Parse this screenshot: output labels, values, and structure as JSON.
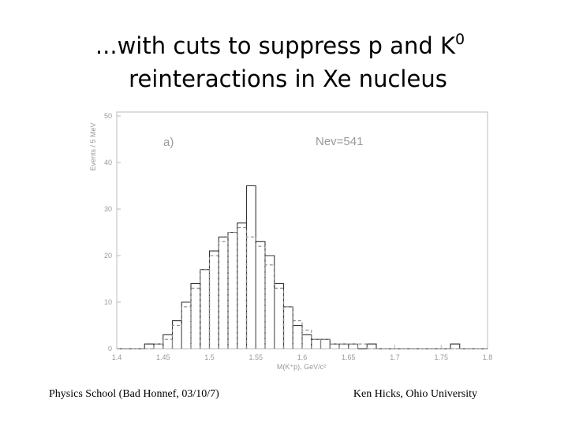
{
  "slide": {
    "title_line1": "...with cuts to suppress p and K",
    "title_sup": "0",
    "title_line2": "reinteractions in Xe nucleus",
    "footer_left": "Physics School (Bad Honnef, 03/10/7)",
    "footer_right": "Ken Hicks, Ohio University"
  },
  "chart_data": {
    "type": "histogram",
    "y_label": "Events / 5 MeV",
    "x_label": "M(K⁺p), GeV/c²",
    "annotations": [
      "a)",
      "Nev=541"
    ],
    "bins": [
      1.4,
      1.41,
      1.42,
      1.43,
      1.44,
      1.45,
      1.46,
      1.47,
      1.48,
      1.49,
      1.5,
      1.51,
      1.52,
      1.53,
      1.54,
      1.55,
      1.56,
      1.57,
      1.58,
      1.59,
      1.6,
      1.61,
      1.62,
      1.63,
      1.64,
      1.65,
      1.66,
      1.67,
      1.68,
      1.69,
      1.7,
      1.71,
      1.72,
      1.73,
      1.74,
      1.75,
      1.76,
      1.77,
      1.78,
      1.79,
      1.8
    ],
    "series": [
      {
        "color": "#333333",
        "values": [
          0,
          0,
          0,
          1,
          1,
          3,
          6,
          10,
          14,
          17,
          21,
          24,
          25,
          27,
          35,
          23,
          20,
          14,
          9,
          5,
          3,
          2,
          2,
          1,
          1,
          1,
          0,
          1,
          0,
          0,
          0,
          0,
          0,
          0,
          0,
          0,
          1,
          0,
          0,
          0
        ]
      },
      {
        "color": "#888888",
        "dash": true,
        "values": [
          0,
          0,
          0,
          0,
          1,
          2,
          5,
          9,
          13,
          17,
          20,
          23,
          25,
          26,
          24,
          22,
          18,
          13,
          9,
          6,
          4,
          2,
          2,
          1,
          1,
          1,
          1,
          0,
          0,
          0,
          0,
          0,
          0,
          0,
          0,
          0,
          0,
          0,
          0,
          0
        ]
      }
    ],
    "xlim": [
      1.4,
      1.8
    ],
    "xticks": [
      1.4,
      1.45,
      1.5,
      1.55,
      1.6,
      1.65,
      1.7,
      1.75,
      1.8
    ],
    "ylim": [
      0,
      50
    ],
    "yticks": [
      0,
      10,
      20,
      30,
      40,
      50
    ]
  }
}
